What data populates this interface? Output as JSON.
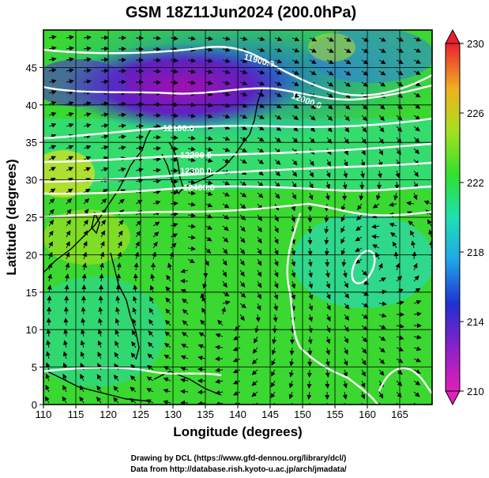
{
  "title": "GSM 18Z11Jun2024 (200.0hPa)",
  "x_axis": {
    "label": "Longitude (degrees)",
    "min": 110,
    "max": 170,
    "ticks": [
      110,
      115,
      120,
      125,
      130,
      135,
      140,
      145,
      150,
      155,
      160,
      165
    ]
  },
  "y_axis": {
    "label": "Latitude (degrees)",
    "min": 0,
    "max": 50,
    "ticks": [
      0,
      5,
      10,
      15,
      20,
      25,
      30,
      35,
      40,
      45
    ]
  },
  "colorbar": {
    "min": 210,
    "max": 230,
    "ticks": [
      210,
      214,
      218,
      222,
      226,
      230
    ]
  },
  "contour_labels": [
    "11900.0",
    "12000.0",
    "12100.0",
    "12200.0",
    "12300.0",
    "12400.0"
  ],
  "footer": {
    "line1": "Drawing by DCL (https://www.gfd-dennou.org/library/dcl/)",
    "line2": "Data from http://database.rish.kyoto-u.ac.jp/arch/jmadata/"
  },
  "colors": {
    "low": "#d81fc0",
    "cold": "#1f2fd8",
    "cyan": "#1fd8e0",
    "green": "#22e020",
    "yellow": "#e8e020",
    "high": "#e0203a"
  }
}
